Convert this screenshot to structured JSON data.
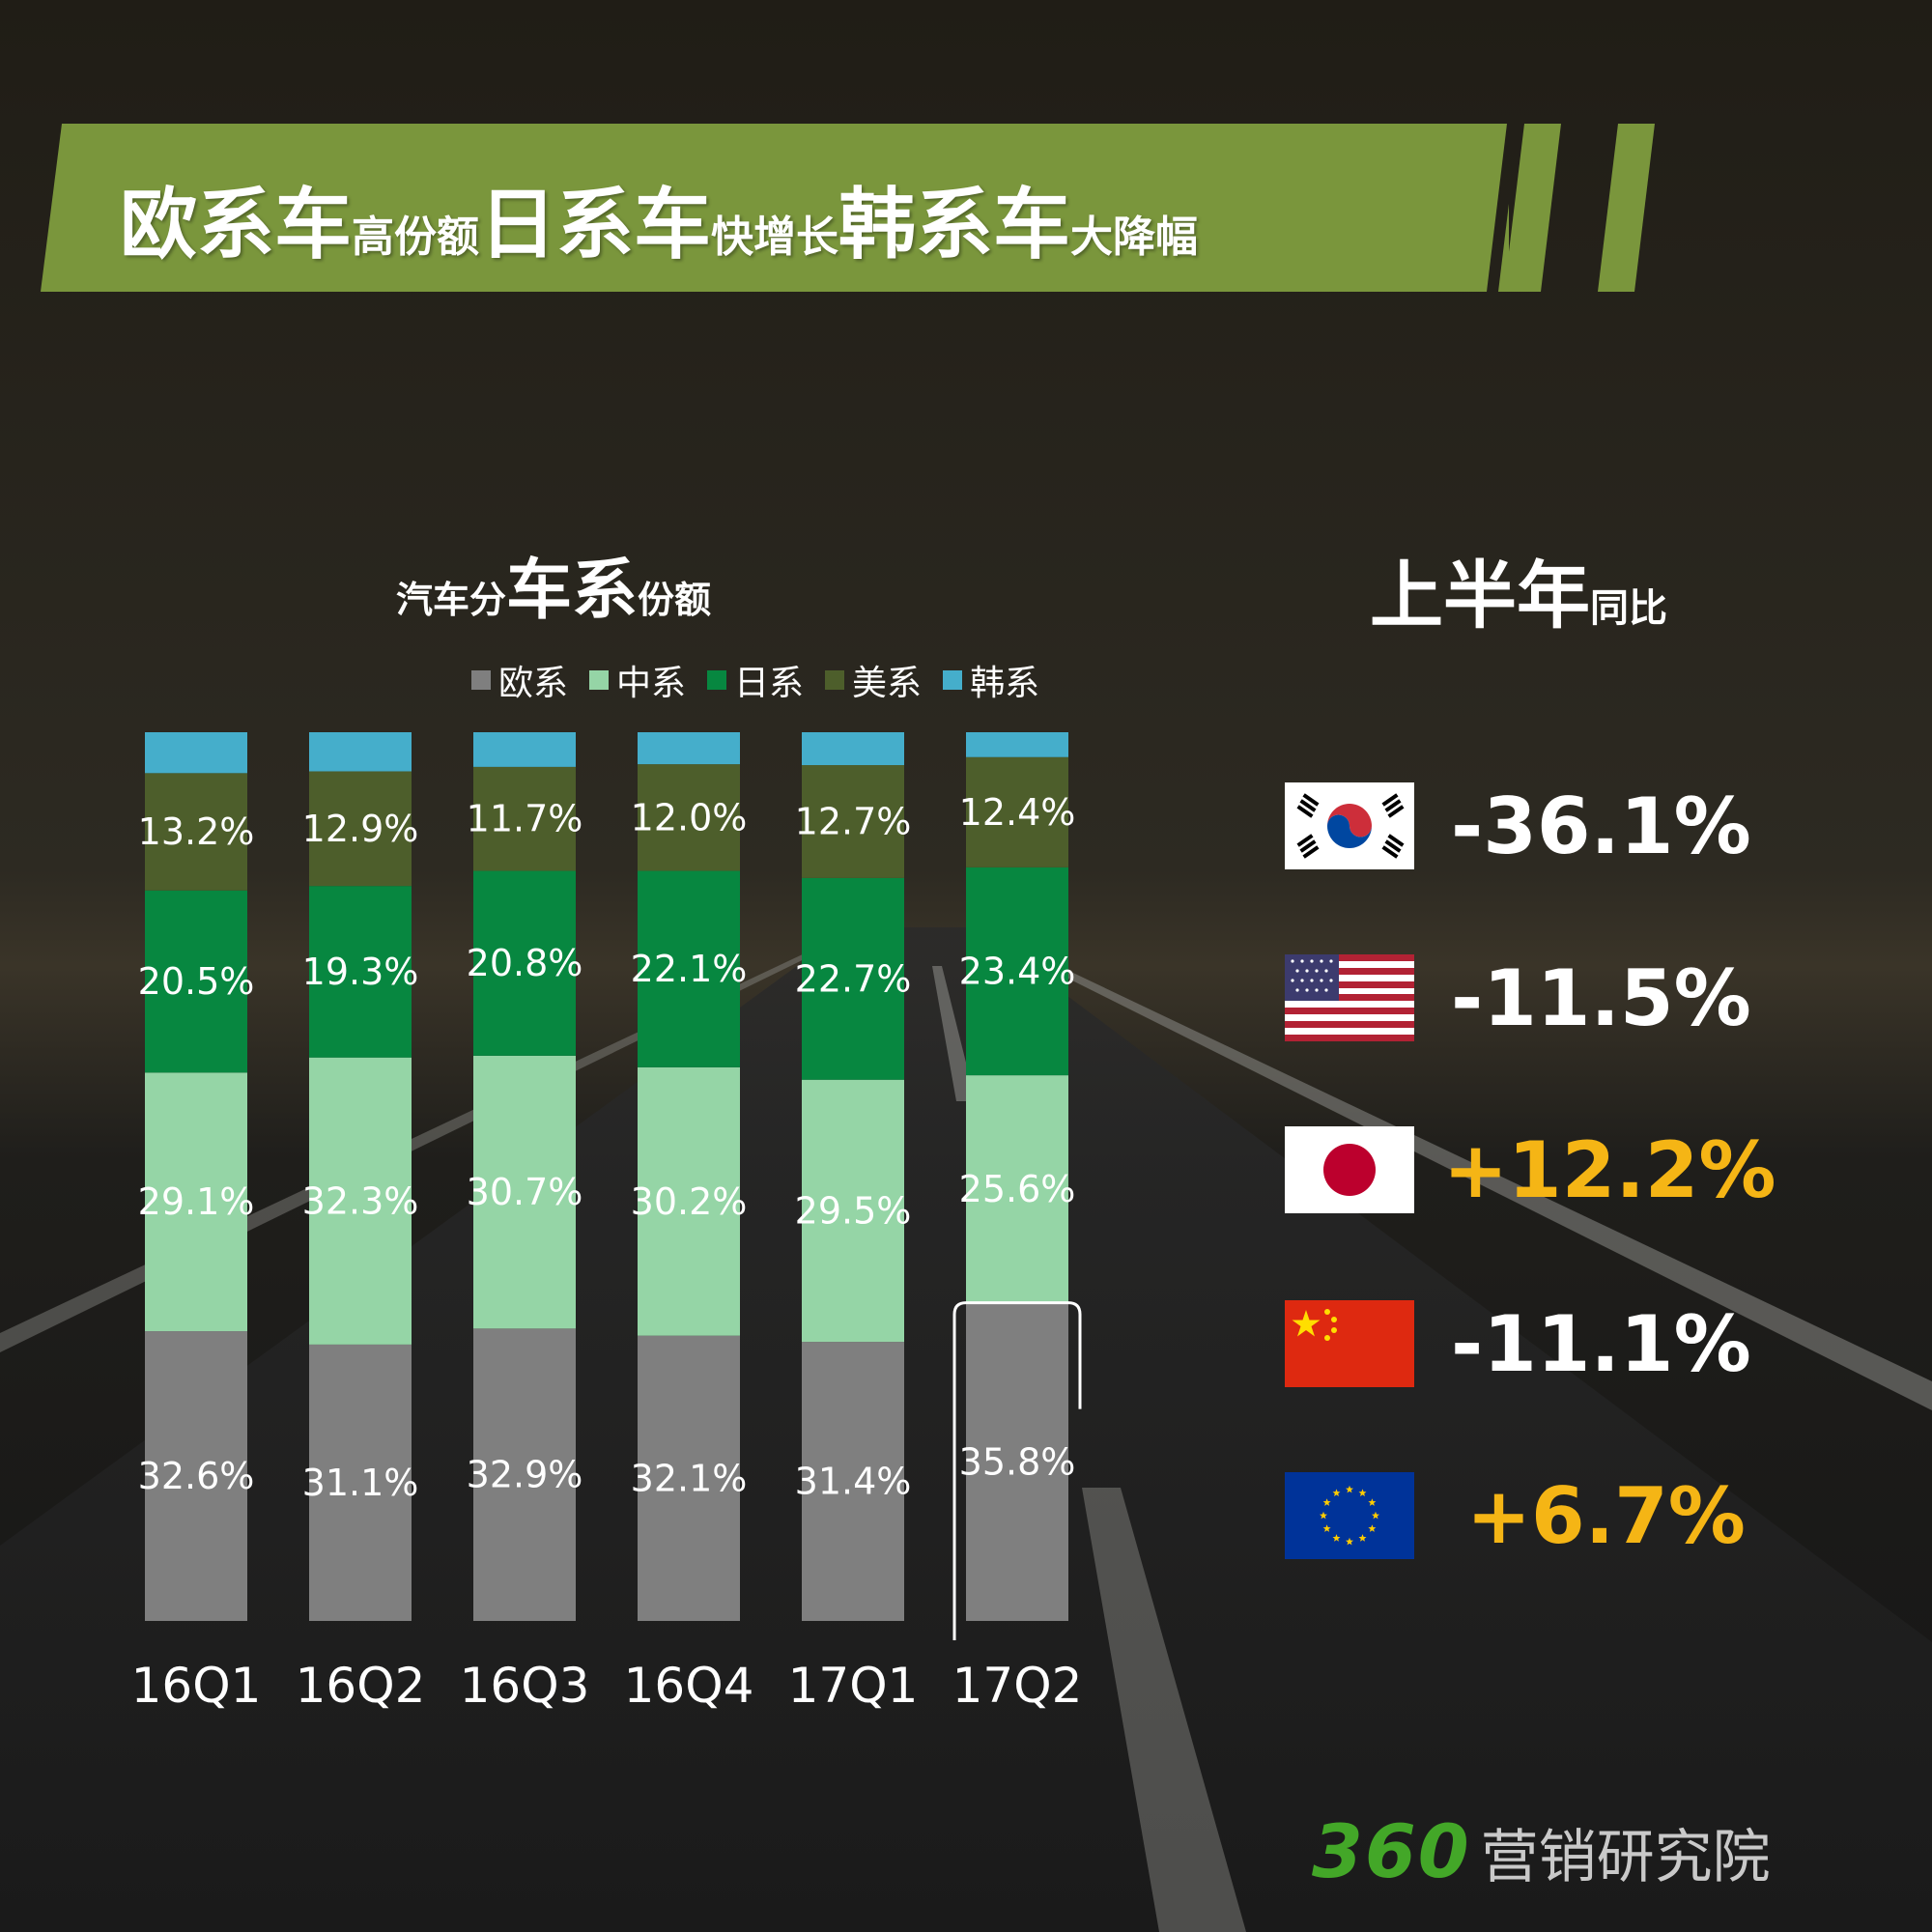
{
  "banner": {
    "parts": [
      {
        "text": "欧系车",
        "size": "big"
      },
      {
        "text": "高份额",
        "size": "small"
      },
      {
        "text": "日系车",
        "size": "big"
      },
      {
        "text": "快增长",
        "size": "small"
      },
      {
        "text": "韩系车",
        "size": "big"
      },
      {
        "text": "大降幅",
        "size": "small"
      }
    ],
    "color": "#7a963c"
  },
  "chart_title": {
    "part1": "汽车分",
    "part2": "车系",
    "part3": "份额"
  },
  "chart_data": {
    "type": "bar",
    "stacked": true,
    "categories": [
      "16Q1",
      "16Q2",
      "16Q3",
      "16Q4",
      "17Q1",
      "17Q2"
    ],
    "series": [
      {
        "name": "欧系",
        "color": "#7f7f7f",
        "values": [
          32.6,
          31.1,
          32.9,
          32.1,
          31.4,
          35.8
        ]
      },
      {
        "name": "中系",
        "color": "#95d5a6",
        "values": [
          29.1,
          32.3,
          30.7,
          30.2,
          29.5,
          25.6
        ]
      },
      {
        "name": "日系",
        "color": "#078740",
        "values": [
          20.5,
          19.3,
          20.8,
          22.1,
          22.7,
          23.4
        ]
      },
      {
        "name": "美系",
        "color": "#4d5e2b",
        "values": [
          13.2,
          12.9,
          11.7,
          12.0,
          12.7,
          12.4
        ]
      },
      {
        "name": "韩系",
        "color": "#45aecb",
        "values": [
          4.6,
          4.4,
          3.9,
          3.6,
          3.7,
          2.8
        ]
      }
    ],
    "labeled_series": [
      0,
      1,
      2,
      3
    ],
    "ylim": [
      0,
      100
    ],
    "highlight": "17Q2"
  },
  "yoy": {
    "title_big": "上半年",
    "title_small": "同比",
    "rows": [
      {
        "flag": "korea-flag-icon",
        "value": "-36.1%",
        "positive": false
      },
      {
        "flag": "usa-flag-icon",
        "value": "-11.5%",
        "positive": false
      },
      {
        "flag": "japan-flag-icon",
        "value": "+12.2%",
        "positive": true
      },
      {
        "flag": "china-flag-icon",
        "value": "-11.1%",
        "positive": false
      },
      {
        "flag": "eu-flag-icon",
        "value": "+6.7%",
        "positive": true
      }
    ]
  },
  "brand": {
    "number": "360",
    "name": "营销研究院"
  }
}
